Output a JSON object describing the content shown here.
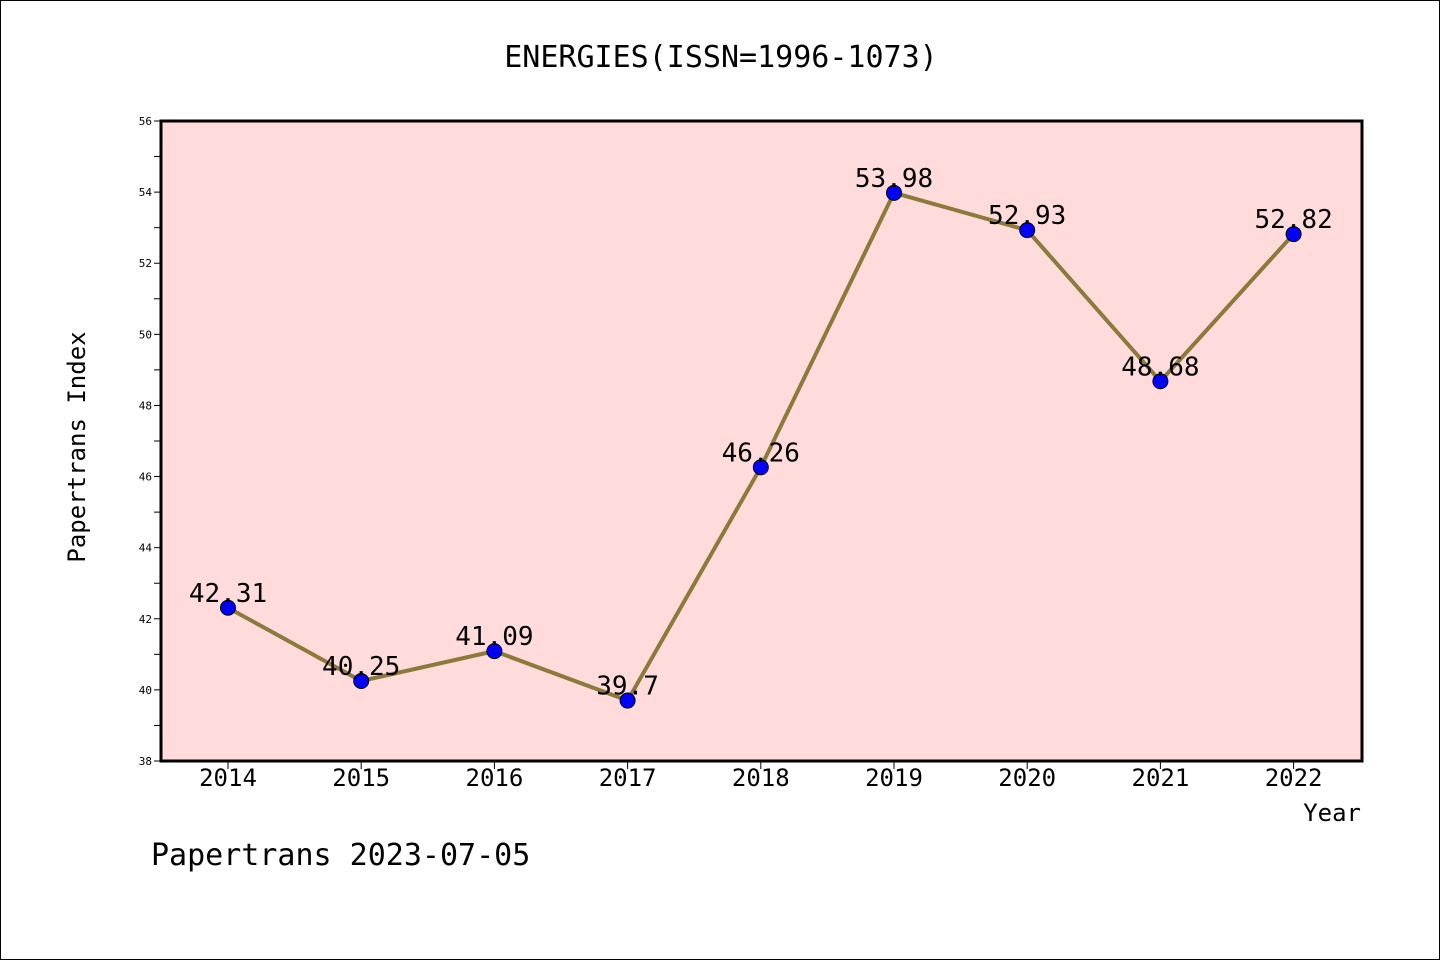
{
  "chart_data": {
    "type": "line",
    "title": "ENERGIES(ISSN=1996-1073)",
    "xlabel": "Year",
    "ylabel": "Papertrans Index",
    "categories": [
      "2014",
      "2015",
      "2016",
      "2017",
      "2018",
      "2019",
      "2020",
      "2021",
      "2022"
    ],
    "series": [
      {
        "values": [
          42.31,
          40.25,
          41.09,
          39.7,
          46.26,
          53.98,
          52.93,
          48.68,
          52.82
        ],
        "labels": [
          "42.31",
          "40.25",
          "41.09",
          "39.7",
          "46.26",
          "53.98",
          "52.93",
          "48.68",
          "52.82"
        ]
      }
    ],
    "ylim": [
      38,
      56
    ],
    "yticks": [
      "38",
      "40",
      "42",
      "44",
      "46",
      "48",
      "50",
      "52",
      "54",
      "56"
    ],
    "grid": false,
    "legend": "none",
    "footer": "Papertrans 2023-07-05",
    "colors": {
      "plot_background": "#ffdcdb",
      "line": "#8b7a3a",
      "marker": "#0000ff",
      "axis": "#000000"
    }
  }
}
